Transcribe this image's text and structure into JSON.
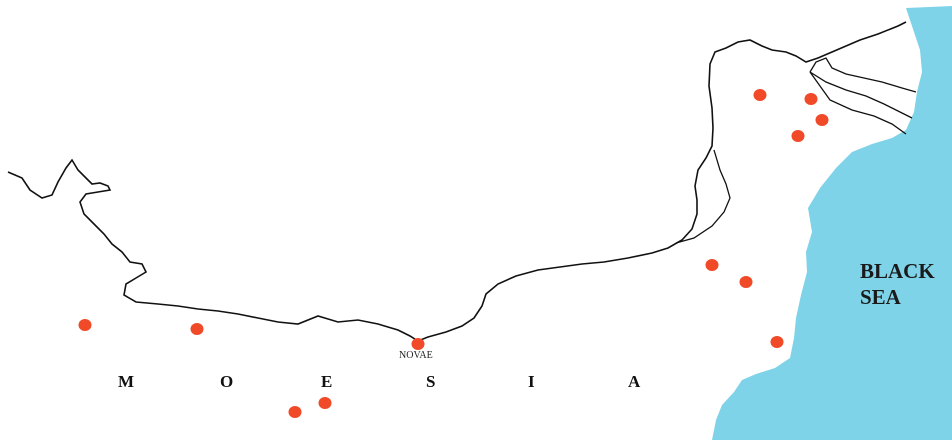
{
  "map": {
    "sea_label_line1": "BLACK",
    "sea_label_line2": "SEA",
    "region_letters": [
      "M",
      "O",
      "E",
      "S",
      "I",
      "A"
    ],
    "site_label": "NOVAE",
    "colors": {
      "sea": "#7fd3e8",
      "site": "#f04a28",
      "river": "#111111"
    }
  }
}
